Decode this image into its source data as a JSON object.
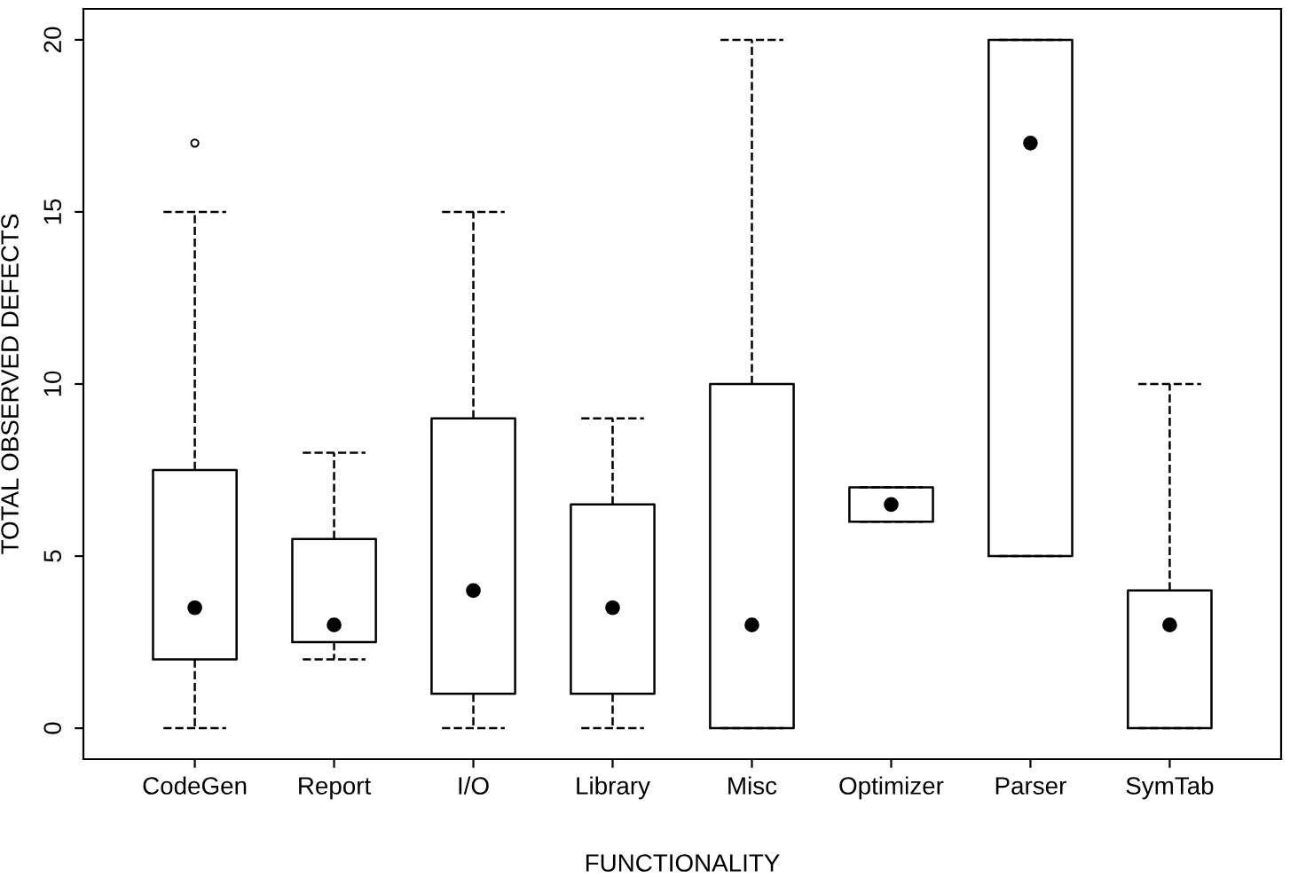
{
  "chart_data": {
    "type": "box",
    "xlabel": "FUNCTIONALITY",
    "ylabel": "TOTAL OBSERVED DEFECTS",
    "categories": [
      "CodeGen",
      "Report",
      "I/O",
      "Library",
      "Misc",
      "Optimizer",
      "Parser",
      "SymTab"
    ],
    "boxes": [
      {
        "low": 0,
        "q1": 2,
        "median": 3.5,
        "q3": 7.5,
        "high": 15,
        "outliers": [
          17
        ]
      },
      {
        "low": 2,
        "q1": 2.5,
        "median": 3,
        "q3": 5.5,
        "high": 8
      },
      {
        "low": 0,
        "q1": 1,
        "median": 4,
        "q3": 9,
        "high": 15
      },
      {
        "low": 0,
        "q1": 1,
        "median": 3.5,
        "q3": 6.5,
        "high": 9
      },
      {
        "low": 0,
        "q1": 0,
        "median": 3,
        "q3": 10,
        "high": 20
      },
      {
        "low": 6,
        "q1": 6,
        "median": 6.5,
        "q3": 7,
        "high": 7
      },
      {
        "low": 5,
        "q1": 5,
        "median": 17,
        "q3": 20,
        "high": 20
      },
      {
        "low": 0,
        "q1": 0,
        "median": 3,
        "q3": 4,
        "high": 10
      }
    ],
    "ylim": [
      -0.9,
      20.9
    ],
    "yticks": [
      0,
      5,
      10,
      15,
      20
    ],
    "grid": false,
    "line_style": "dashed",
    "marker": "circle"
  }
}
